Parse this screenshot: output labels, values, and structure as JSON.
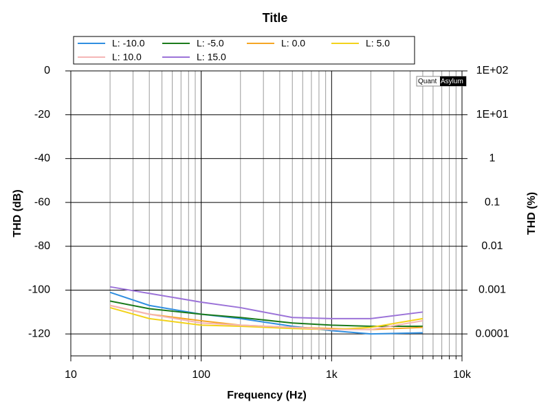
{
  "chart_data": {
    "type": "line",
    "title": "Title",
    "xlabel": "Frequency (Hz)",
    "ylabel": "THD (dB)",
    "y2label": "THD (%)",
    "annotations": [
      "Quant",
      "Asylum"
    ],
    "x": [
      20,
      40,
      100,
      200,
      500,
      1000,
      2000,
      5000
    ],
    "series": [
      {
        "name": "L: -10.0",
        "color": "#2f8ee0",
        "values": [
          -101,
          -107,
          -111,
          -113,
          -116.5,
          -118.5,
          -120,
          -119.5
        ]
      },
      {
        "name": "L: -5.0",
        "color": "#1a7a1a",
        "values": [
          -105,
          -108.5,
          -111,
          -112.5,
          -115,
          -116,
          -116.5,
          -116.5
        ]
      },
      {
        "name": "L: 0.0",
        "color": "#f5a623",
        "values": [
          -107,
          -111,
          -114,
          -116,
          -117,
          -117.5,
          -118,
          -117
        ]
      },
      {
        "name": "L: 5.0",
        "color": "#f2d21a",
        "values": [
          -108,
          -113,
          -116,
          -116.5,
          -117.5,
          -118,
          -117,
          -113
        ]
      },
      {
        "name": "L: 10.0",
        "color": "#f5b5b5",
        "values": [
          -107,
          -111,
          -115,
          -116,
          -117,
          -118,
          -118,
          -114
        ]
      },
      {
        "name": "L: 15.0",
        "color": "#9b72d8",
        "values": [
          -98.5,
          -101.5,
          -105.5,
          -108,
          -112.5,
          -113,
          -113,
          -110
        ]
      }
    ],
    "xscale": "log",
    "xlim": [
      10,
      10000
    ],
    "xticks": [
      10,
      100,
      {
        "value": 1000,
        "label": "1k"
      },
      {
        "value": 10000,
        "label": "10k"
      }
    ],
    "xminorticks": [
      20,
      30,
      40,
      50,
      60,
      70,
      80,
      90,
      200,
      300,
      400,
      500,
      600,
      700,
      800,
      900,
      2000,
      3000,
      4000,
      5000,
      6000,
      7000,
      8000,
      9000
    ],
    "ylim": [
      -130,
      0
    ],
    "yticks": [
      0,
      -20,
      -40,
      -60,
      -80,
      -100,
      -120
    ],
    "y2scale": "log",
    "y2lim": [
      3.16e-05,
      100
    ],
    "y2ticks": [
      {
        "value": 100,
        "label": "1E+02"
      },
      {
        "value": 10,
        "label": "1E+01"
      },
      1,
      0.1,
      0.01,
      0.001,
      0.0001
    ],
    "grid": true
  }
}
